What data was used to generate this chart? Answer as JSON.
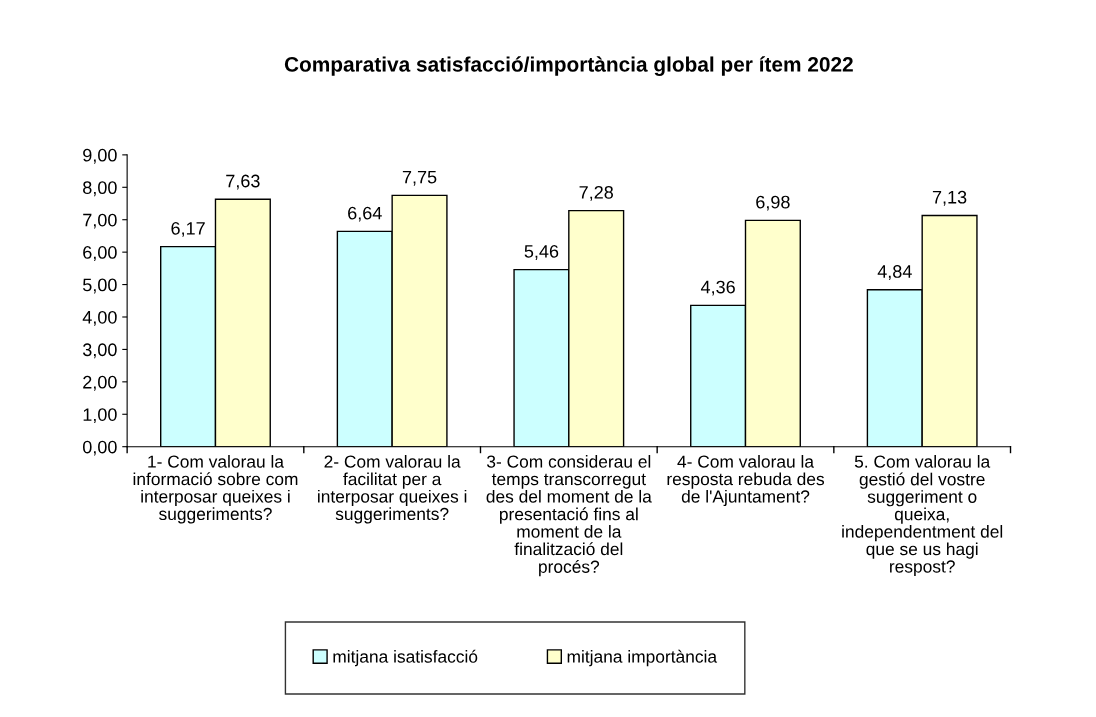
{
  "chart_data": {
    "type": "bar",
    "title": "Comparativa satisfacció/importància global per ítem 2022",
    "categories": [
      "1- Com valorau la\ninformació sobre com\ninterposar queixes i\nsuggeriments?",
      "2- Com valorau la\nfacilitat per a\ninterposar queixes i\nsuggeriments?",
      "3- Com considerau el\ntemps transcorregut\ndes del moment de la\npresentació fins al\nmoment de la\nfinalització del\nprocés?",
      "4- Com valorau la\nresposta rebuda des\nde l'Ajuntament?",
      "5. Com valorau la\ngestió del vostre\nsuggeriment o\nqueixa,\nindependentment del\nque se us hagi\nrespost?"
    ],
    "series": [
      {
        "name": "mitjana isatisfacció",
        "color": "#ccffff",
        "values": [
          6.17,
          6.64,
          5.46,
          4.36,
          4.84
        ],
        "value_labels": [
          "6,17",
          "6,64",
          "5,46",
          "4,36",
          "4,84"
        ]
      },
      {
        "name": "mitjana importància",
        "color": "#ffffcc",
        "values": [
          7.63,
          7.75,
          7.28,
          6.98,
          7.13
        ],
        "value_labels": [
          "7,63",
          "7,75",
          "7,28",
          "6,98",
          "7,13"
        ]
      }
    ],
    "ylim": [
      0,
      9
    ],
    "yticks": [
      {
        "value": 0,
        "label": "0,00"
      },
      {
        "value": 1,
        "label": "1,00"
      },
      {
        "value": 2,
        "label": "2,00"
      },
      {
        "value": 3,
        "label": "3,00"
      },
      {
        "value": 4,
        "label": "4,00"
      },
      {
        "value": 5,
        "label": "5,00"
      },
      {
        "value": 6,
        "label": "6,00"
      },
      {
        "value": 7,
        "label": "7,00"
      },
      {
        "value": 8,
        "label": "8,00"
      },
      {
        "value": 9,
        "label": "9,00"
      }
    ],
    "grid": false,
    "legend": "bottom"
  }
}
